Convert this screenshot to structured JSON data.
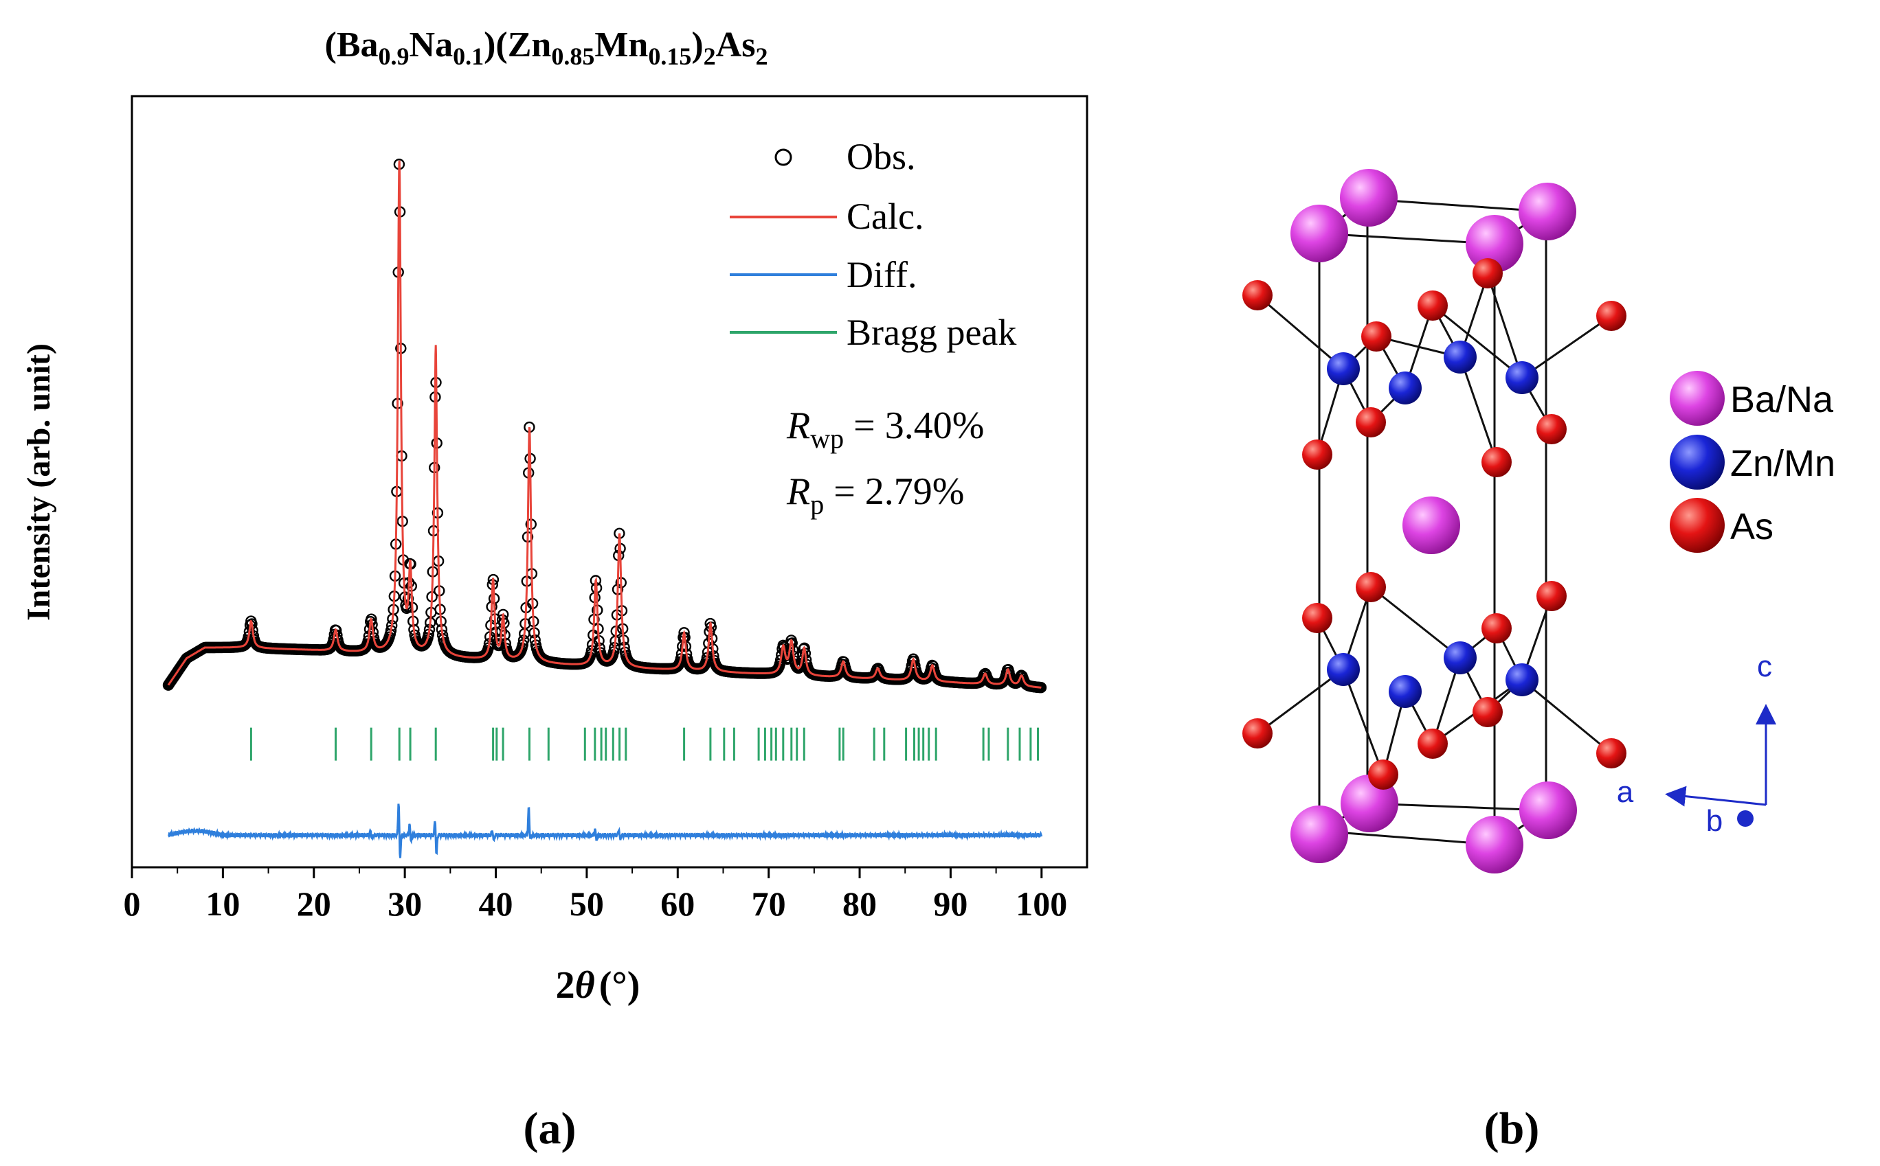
{
  "chart_data": {
    "type": "scatter",
    "title": {
      "parts": [
        {
          "t": "(Ba"
        },
        {
          "t": "0.9",
          "sub": true
        },
        {
          "t": "Na"
        },
        {
          "t": "0.1",
          "sub": true
        },
        {
          "t": ")(Zn"
        },
        {
          "t": "0.85",
          "sub": true
        },
        {
          "t": "Mn"
        },
        {
          "t": "0.15",
          "sub": true
        },
        {
          "t": ")"
        },
        {
          "t": "2",
          "sub": true
        },
        {
          "t": "As"
        },
        {
          "t": "2",
          "sub": true
        }
      ]
    },
    "xlabel": {
      "prefix": "2",
      "symbol": "θ",
      "suffix": "(°)"
    },
    "ylabel": "Intensity (arb. unit)",
    "xlim": [
      0,
      105
    ],
    "ylim": [
      -0.32,
      1.12
    ],
    "xticks": [
      0,
      10,
      20,
      30,
      40,
      50,
      60,
      70,
      80,
      90,
      100
    ],
    "yticks_shown": false,
    "legend": {
      "position": "top-right",
      "entries": [
        {
          "label": "Obs.",
          "marker": "open-circle",
          "color": "#000000"
        },
        {
          "label": "Calc.",
          "marker": "line",
          "color": "#e8443a"
        },
        {
          "label": "Diff.",
          "marker": "line",
          "color": "#2f7fdc"
        },
        {
          "label": "Bragg peak",
          "marker": "line",
          "color": "#2ea56a"
        }
      ]
    },
    "annotations": [
      {
        "symbol": "R",
        "sub": "wp",
        "text": " = 3.40%"
      },
      {
        "symbol": "R",
        "sub": "p",
        "text": " = 2.79%"
      }
    ],
    "range": [
      4,
      100
    ],
    "background": [
      [
        4,
        0.02
      ],
      [
        6,
        0.07
      ],
      [
        8,
        0.09
      ],
      [
        12,
        0.09
      ],
      [
        20,
        0.085
      ],
      [
        35,
        0.07
      ],
      [
        50,
        0.055
      ],
      [
        70,
        0.04
      ],
      [
        90,
        0.025
      ],
      [
        100,
        0.015
      ]
    ],
    "peaks": [
      {
        "x": 13.1,
        "h": 0.05,
        "w": 0.35
      },
      {
        "x": 22.4,
        "h": 0.04,
        "w": 0.35
      },
      {
        "x": 26.3,
        "h": 0.06,
        "w": 0.35
      },
      {
        "x": 29.4,
        "h": 0.92,
        "w": 0.3
      },
      {
        "x": 30.6,
        "h": 0.15,
        "w": 0.3
      },
      {
        "x": 33.4,
        "h": 0.52,
        "w": 0.32
      },
      {
        "x": 39.7,
        "h": 0.15,
        "w": 0.3
      },
      {
        "x": 40.8,
        "h": 0.08,
        "w": 0.3
      },
      {
        "x": 43.7,
        "h": 0.44,
        "w": 0.3
      },
      {
        "x": 51.0,
        "h": 0.16,
        "w": 0.32
      },
      {
        "x": 53.6,
        "h": 0.25,
        "w": 0.33
      },
      {
        "x": 60.7,
        "h": 0.07,
        "w": 0.35
      },
      {
        "x": 63.6,
        "h": 0.09,
        "w": 0.35
      },
      {
        "x": 71.6,
        "h": 0.05,
        "w": 0.4
      },
      {
        "x": 72.5,
        "h": 0.06,
        "w": 0.4
      },
      {
        "x": 73.9,
        "h": 0.05,
        "w": 0.35
      },
      {
        "x": 78.2,
        "h": 0.03,
        "w": 0.4
      },
      {
        "x": 82.0,
        "h": 0.02,
        "w": 0.4
      },
      {
        "x": 85.9,
        "h": 0.04,
        "w": 0.4
      },
      {
        "x": 88.0,
        "h": 0.03,
        "w": 0.4
      },
      {
        "x": 93.8,
        "h": 0.02,
        "w": 0.4
      },
      {
        "x": 96.3,
        "h": 0.03,
        "w": 0.4
      },
      {
        "x": 97.8,
        "h": 0.02,
        "w": 0.4
      }
    ],
    "calc_overshoot": [
      {
        "x": 33.4,
        "h": 0.06
      }
    ],
    "bragg_positions": [
      13.1,
      22.4,
      26.3,
      29.4,
      30.6,
      33.4,
      39.7,
      40.1,
      40.8,
      43.7,
      45.8,
      49.8,
      50.9,
      51.6,
      52.1,
      52.9,
      53.6,
      54.3,
      60.7,
      63.6,
      65.1,
      66.2,
      68.9,
      69.6,
      70.3,
      70.8,
      71.6,
      72.5,
      73.1,
      73.9,
      77.8,
      78.2,
      81.6,
      82.7,
      85.1,
      86.0,
      86.5,
      87.0,
      87.6,
      88.4,
      93.6,
      94.2,
      96.3,
      97.6,
      98.8,
      99.6
    ],
    "bragg_y": -0.09,
    "diff_baseline": -0.26,
    "diff_spikes": [
      {
        "x": 29.4,
        "up": 0.067,
        "down": 0.05
      },
      {
        "x": 30.6,
        "up": 0.02,
        "down": 0.01
      },
      {
        "x": 33.4,
        "up": 0.03,
        "down": 0.04
      },
      {
        "x": 39.7,
        "up": 0.01,
        "down": 0.012
      },
      {
        "x": 43.7,
        "up": 0.054,
        "down": 0.01
      },
      {
        "x": 51.0,
        "up": 0.01,
        "down": 0.008
      },
      {
        "x": 53.6,
        "up": 0.012,
        "down": 0.01
      },
      {
        "x": 26.3,
        "up": 0.008,
        "down": 0.006
      }
    ]
  },
  "panel_labels": {
    "a": "(a)",
    "b": "(b)"
  },
  "structure": {
    "legend": [
      {
        "label": "Ba/Na",
        "color": "#d040d8"
      },
      {
        "label": "Zn/Mn",
        "color": "#1f2ad0"
      },
      {
        "label": "As",
        "color": "#e01818"
      }
    ],
    "axes": {
      "c": "c",
      "a": "a",
      "b": "b",
      "color": "#1d2bc8"
    }
  }
}
